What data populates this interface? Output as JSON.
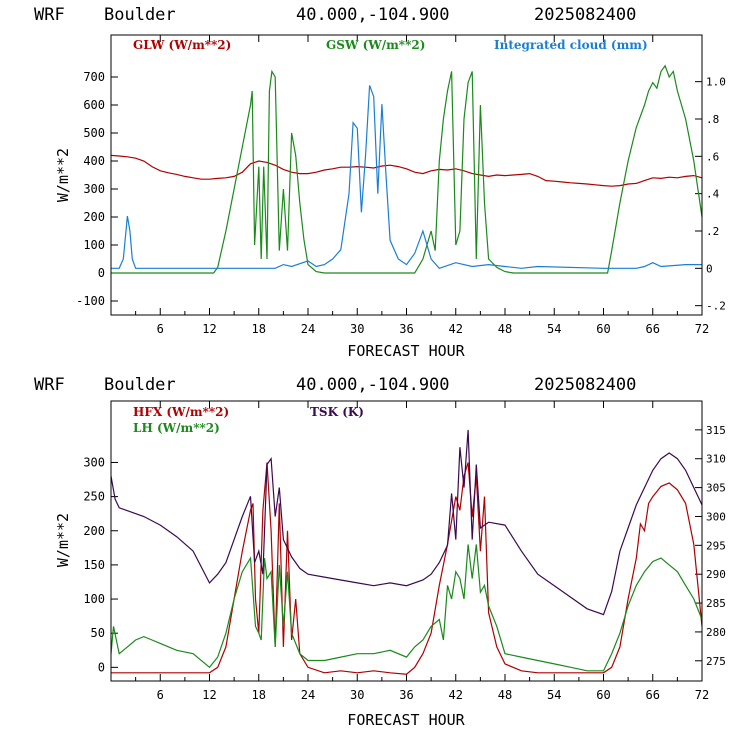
{
  "colors": {
    "glw": "#b00000",
    "gsw": "#1a8a1a",
    "cloud": "#1a7fd4",
    "hfx": "#b00000",
    "lh": "#1a8a1a",
    "tsk": "#3a0a50"
  },
  "chart_data": [
    {
      "type": "line",
      "header": {
        "model": "WRF",
        "location": "Boulder",
        "coords": "40.000,-104.900",
        "date": "2025082400"
      },
      "xlabel": "FORECAST HOUR",
      "ylabel": "W/m**2",
      "xlim": [
        0,
        72
      ],
      "ylim": [
        -150,
        850
      ],
      "y2lim": [
        -0.25,
        1.25
      ],
      "x_ticks": [
        6,
        12,
        18,
        24,
        30,
        36,
        42,
        48,
        54,
        60,
        66,
        72
      ],
      "y_ticks": [
        -100,
        0,
        100,
        200,
        300,
        400,
        500,
        600,
        700
      ],
      "y2_ticks": [
        -0.2,
        0,
        0.2,
        0.4,
        0.6,
        0.8,
        1.0
      ],
      "y2_tick_labels": [
        "-.2",
        "0",
        ".2",
        ".4",
        ".6",
        ".8",
        "1.0"
      ],
      "series": [
        {
          "name": "GLW (W/m**2)",
          "axis": "left",
          "x": [
            0,
            1,
            2,
            3,
            4,
            5,
            6,
            7,
            8,
            9,
            10,
            11,
            12,
            13,
            14,
            15,
            16,
            17,
            18,
            19,
            20,
            21,
            22,
            23,
            24,
            25,
            26,
            27,
            28,
            29,
            30,
            31,
            32,
            33,
            34,
            35,
            36,
            37,
            38,
            39,
            40,
            41,
            42,
            43,
            44,
            45,
            46,
            47,
            48,
            49,
            50,
            51,
            52,
            53,
            54,
            55,
            56,
            57,
            58,
            59,
            60,
            61,
            62,
            63,
            64,
            65,
            66,
            67,
            68,
            69,
            70,
            71,
            72
          ],
          "y": [
            420,
            418,
            415,
            410,
            400,
            380,
            365,
            358,
            352,
            345,
            340,
            335,
            335,
            338,
            340,
            345,
            360,
            390,
            400,
            395,
            385,
            370,
            360,
            355,
            355,
            360,
            368,
            372,
            378,
            378,
            380,
            378,
            375,
            382,
            385,
            380,
            372,
            360,
            355,
            365,
            370,
            368,
            372,
            365,
            355,
            350,
            345,
            350,
            348,
            350,
            352,
            355,
            345,
            330,
            328,
            325,
            322,
            320,
            318,
            315,
            312,
            310,
            312,
            318,
            320,
            330,
            340,
            338,
            342,
            340,
            345,
            348,
            340
          ]
        },
        {
          "name": "GSW (W/m**2)",
          "axis": "left",
          "x": [
            0,
            12.5,
            13,
            14,
            15,
            16,
            17,
            17.2,
            17.5,
            18,
            18.3,
            18.6,
            19,
            19.3,
            19.6,
            20,
            20.5,
            21,
            21.5,
            22,
            22.5,
            23,
            23.5,
            24,
            25,
            26,
            37,
            38,
            39,
            39.5,
            40,
            40.5,
            41,
            41.5,
            42,
            42.5,
            43,
            43.5,
            44,
            44.5,
            45,
            45.5,
            46,
            47,
            48,
            49,
            50,
            51,
            60,
            60.5,
            61,
            62,
            63,
            64,
            65,
            65.5,
            66,
            66.5,
            67,
            67.5,
            68,
            68.5,
            69,
            70,
            71,
            72
          ],
          "y": [
            0,
            0,
            20,
            150,
            300,
            450,
            600,
            650,
            100,
            380,
            50,
            380,
            50,
            650,
            720,
            700,
            80,
            300,
            80,
            500,
            420,
            250,
            120,
            30,
            5,
            0,
            0,
            50,
            150,
            80,
            400,
            550,
            650,
            720,
            100,
            150,
            550,
            680,
            720,
            50,
            600,
            250,
            50,
            20,
            5,
            0,
            0,
            0,
            0,
            0,
            80,
            250,
            400,
            520,
            600,
            650,
            680,
            660,
            720,
            740,
            700,
            720,
            650,
            550,
            400,
            200
          ]
        },
        {
          "name": "Integrated cloud (mm)",
          "axis": "right",
          "x": [
            0,
            1,
            1.5,
            2,
            2.3,
            2.6,
            3,
            3.5,
            4,
            20,
            21,
            22,
            24,
            25,
            26,
            27,
            28,
            29,
            29.5,
            30,
            30.5,
            31,
            31.5,
            32,
            32.5,
            33,
            33.5,
            34,
            35,
            36,
            37,
            38,
            39,
            40,
            42,
            44,
            46,
            48,
            50,
            52,
            60,
            64,
            65,
            66,
            67,
            70,
            72
          ],
          "y": [
            0,
            0,
            0.05,
            0.28,
            0.2,
            0.05,
            0,
            0,
            0,
            0,
            0.02,
            0.01,
            0.04,
            0.01,
            0.02,
            0.05,
            0.1,
            0.4,
            0.78,
            0.75,
            0.3,
            0.6,
            0.98,
            0.92,
            0.4,
            0.88,
            0.5,
            0.15,
            0.05,
            0.02,
            0.08,
            0.2,
            0.05,
            0,
            0.03,
            0.01,
            0.02,
            0.01,
            0,
            0.01,
            0,
            0,
            0.01,
            0.03,
            0.01,
            0.02,
            0.02
          ]
        }
      ]
    },
    {
      "type": "line",
      "header": {
        "model": "WRF",
        "location": "Boulder",
        "coords": "40.000,-104.900",
        "date": "2025082400"
      },
      "xlabel": "FORECAST HOUR",
      "ylabel": "W/m**2",
      "xlim": [
        0,
        72
      ],
      "ylim": [
        -20,
        390
      ],
      "y2lim": [
        271.5,
        320
      ],
      "x_ticks": [
        6,
        12,
        18,
        24,
        30,
        36,
        42,
        48,
        54,
        60,
        66,
        72
      ],
      "y_ticks": [
        0,
        50,
        100,
        150,
        200,
        250,
        300
      ],
      "y2_ticks": [
        275,
        280,
        285,
        290,
        295,
        300,
        305,
        310,
        315
      ],
      "series": [
        {
          "name": "HFX (W/m**2)",
          "axis": "left",
          "x": [
            0,
            2,
            4,
            6,
            8,
            10,
            12,
            13,
            14,
            15,
            16,
            17,
            17.3,
            17.6,
            18,
            18.5,
            19,
            19.5,
            20,
            20.5,
            21,
            21.5,
            22,
            22.5,
            23,
            24,
            26,
            28,
            30,
            32,
            34,
            36,
            37,
            38,
            39,
            40,
            41,
            42,
            42.5,
            43,
            43.5,
            44,
            44.5,
            45,
            45.5,
            46,
            47,
            48,
            50,
            52,
            54,
            56,
            58,
            60,
            61,
            62,
            63,
            64,
            64.5,
            65,
            65.5,
            66,
            67,
            68,
            69,
            70,
            71,
            72
          ],
          "y": [
            -8,
            -8,
            -8,
            -8,
            -8,
            -8,
            -8,
            0,
            30,
            100,
            170,
            230,
            240,
            100,
            50,
            230,
            300,
            200,
            30,
            240,
            30,
            200,
            40,
            100,
            20,
            0,
            -8,
            -5,
            -8,
            -5,
            -8,
            -10,
            0,
            20,
            50,
            120,
            180,
            250,
            230,
            280,
            300,
            220,
            280,
            170,
            250,
            80,
            30,
            5,
            -5,
            -8,
            -8,
            -8,
            -8,
            -8,
            0,
            30,
            100,
            160,
            210,
            200,
            240,
            250,
            265,
            270,
            260,
            240,
            180,
            60
          ]
        },
        {
          "name": "LH  (W/m**2)",
          "axis": "left",
          "x": [
            0,
            0.3,
            1,
            2,
            3,
            4,
            5,
            6,
            8,
            10,
            12,
            13,
            14,
            15,
            16,
            17,
            17.3,
            17.6,
            18,
            18.3,
            18.7,
            19,
            19.5,
            20,
            20.5,
            21,
            21.5,
            22,
            23,
            24,
            26,
            28,
            30,
            32,
            34,
            36,
            37,
            38,
            39,
            40,
            40.5,
            41,
            41.5,
            42,
            42.5,
            43,
            43.5,
            44,
            44.5,
            45,
            45.5,
            46,
            47,
            48,
            50,
            52,
            54,
            56,
            58,
            60,
            61,
            62,
            63,
            64,
            65,
            66,
            67,
            68,
            69,
            70,
            71,
            72
          ],
          "y": [
            20,
            60,
            20,
            30,
            40,
            45,
            40,
            35,
            25,
            20,
            0,
            15,
            50,
            100,
            140,
            160,
            110,
            60,
            50,
            40,
            160,
            130,
            140,
            30,
            150,
            60,
            140,
            50,
            20,
            10,
            10,
            15,
            20,
            20,
            25,
            15,
            30,
            40,
            60,
            70,
            40,
            120,
            100,
            140,
            130,
            100,
            180,
            130,
            180,
            110,
            120,
            90,
            60,
            20,
            15,
            10,
            5,
            0,
            -5,
            -5,
            20,
            50,
            90,
            120,
            140,
            155,
            160,
            150,
            140,
            120,
            100,
            70
          ]
        },
        {
          "name": "TSK (K)",
          "axis": "right",
          "x": [
            0,
            0.5,
            1,
            2,
            4,
            6,
            8,
            10,
            12,
            13,
            14,
            15,
            16,
            17,
            17.5,
            18,
            18.5,
            19,
            19.5,
            20,
            20.5,
            21,
            22,
            22.5,
            23,
            24,
            26,
            28,
            30,
            32,
            34,
            36,
            38,
            39,
            40,
            41,
            41.5,
            42,
            42.5,
            43,
            43.5,
            44,
            44.5,
            45,
            46,
            48,
            50,
            52,
            54,
            56,
            58,
            60,
            61,
            62,
            63,
            64,
            65,
            66,
            67,
            68,
            69,
            70,
            71,
            72
          ],
          "y": [
            307,
            303,
            301.5,
            301,
            300,
            298.5,
            296.5,
            294,
            288.5,
            290,
            292,
            296,
            300,
            303.5,
            292,
            294,
            290,
            309,
            310,
            300,
            305,
            296,
            293,
            292,
            291,
            290,
            289.5,
            289,
            288.5,
            288,
            288.5,
            288,
            289,
            290,
            292,
            295,
            304,
            296,
            312,
            305,
            315,
            296,
            309,
            298,
            299,
            298.5,
            294,
            290,
            288,
            286,
            284,
            283,
            287,
            294,
            298,
            302,
            305,
            308,
            310,
            311,
            310,
            308,
            305,
            302
          ]
        }
      ]
    }
  ]
}
